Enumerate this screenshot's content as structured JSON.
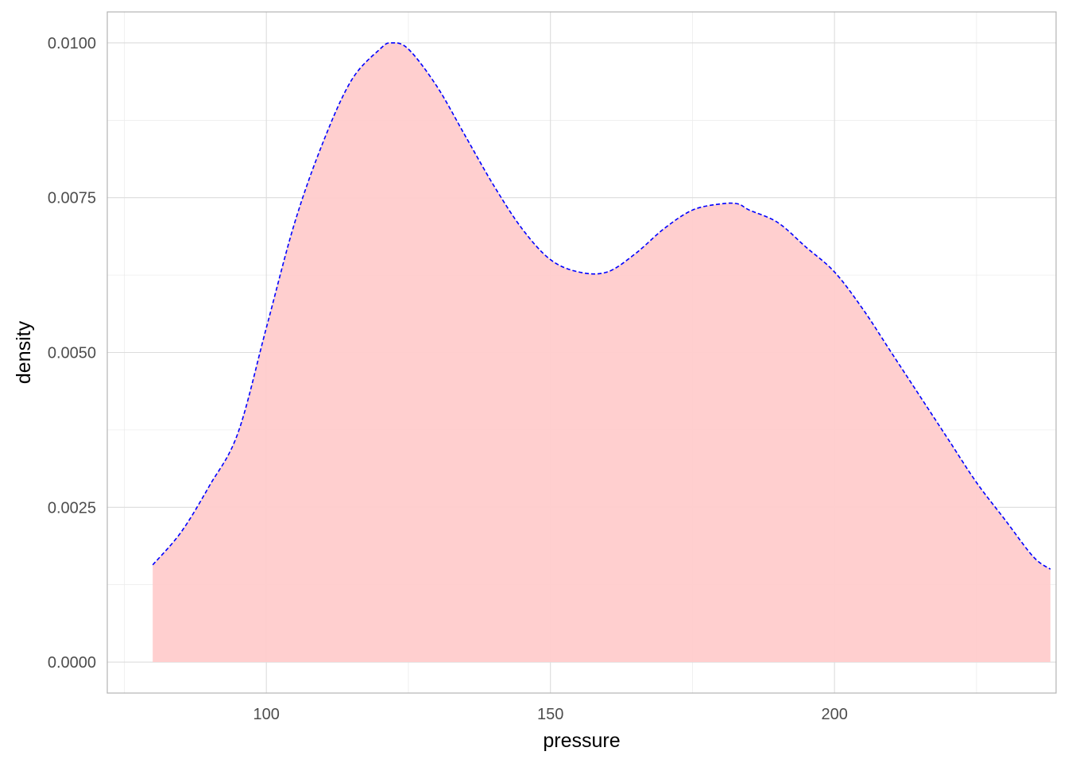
{
  "chart_data": {
    "type": "area",
    "xlabel": "pressure",
    "ylabel": "density",
    "xlim": [
      72,
      239
    ],
    "ylim": [
      -0.0005,
      0.0105
    ],
    "x_ticks": [
      100,
      150,
      200
    ],
    "x_tick_labels": [
      "100",
      "150",
      "200"
    ],
    "x_minor_ticks": [
      75,
      125,
      175,
      225
    ],
    "y_ticks": [
      0.0,
      0.0025,
      0.005,
      0.0075,
      0.01
    ],
    "y_tick_labels": [
      "0.0000",
      "0.0025",
      "0.0050",
      "0.0075",
      "0.0100"
    ],
    "y_minor_ticks": [
      0.00125,
      0.00375,
      0.00625,
      0.00875
    ],
    "grid": true,
    "fill_color": "#FFCCCC",
    "line_color": "#0000FF",
    "line_style": "dashed",
    "x": [
      80,
      85,
      90,
      95,
      100,
      105,
      110,
      115,
      120,
      122,
      125,
      130,
      135,
      140,
      145,
      150,
      155,
      160,
      165,
      170,
      175,
      180,
      183,
      185,
      190,
      195,
      200,
      205,
      210,
      215,
      220,
      225,
      230,
      235,
      238
    ],
    "y": [
      0.00157,
      0.0021,
      0.00285,
      0.0037,
      0.0054,
      0.0071,
      0.0084,
      0.0094,
      0.0099,
      0.01,
      0.0099,
      0.0093,
      0.0085,
      0.0077,
      0.007,
      0.0065,
      0.0063,
      0.0063,
      0.0066,
      0.007,
      0.0073,
      0.0074,
      0.0074,
      0.0073,
      0.0071,
      0.0067,
      0.0063,
      0.0057,
      0.005,
      0.0043,
      0.0036,
      0.0029,
      0.0023,
      0.0017,
      0.0015
    ]
  }
}
